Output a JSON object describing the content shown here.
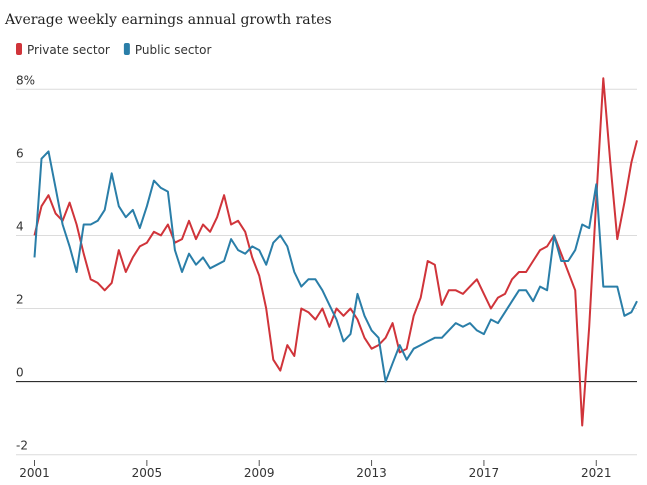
{
  "chart_data": {
    "type": "line",
    "title": "Average weekly earnings annual growth rates",
    "x": [
      2001,
      2001.25,
      2001.5,
      2001.75,
      2002,
      2002.25,
      2002.5,
      2002.75,
      2003,
      2003.25,
      2003.5,
      2003.75,
      2004,
      2004.25,
      2004.5,
      2004.75,
      2005,
      2005.25,
      2005.5,
      2005.75,
      2006,
      2006.25,
      2006.5,
      2006.75,
      2007,
      2007.25,
      2007.5,
      2007.75,
      2008,
      2008.25,
      2008.5,
      2008.75,
      2009,
      2009.25,
      2009.5,
      2009.75,
      2010,
      2010.25,
      2010.5,
      2010.75,
      2011,
      2011.25,
      2011.5,
      2011.75,
      2012,
      2012.25,
      2012.5,
      2012.75,
      2013,
      2013.25,
      2013.5,
      2013.75,
      2014,
      2014.25,
      2014.5,
      2014.75,
      2015,
      2015.25,
      2015.5,
      2015.75,
      2016,
      2016.25,
      2016.5,
      2016.75,
      2017,
      2017.25,
      2017.5,
      2017.75,
      2018,
      2018.25,
      2018.5,
      2018.75,
      2019,
      2019.25,
      2019.5,
      2019.75,
      2020,
      2020.25,
      2020.5,
      2020.75,
      2021,
      2021.25,
      2021.5,
      2021.75,
      2022,
      2022.25,
      2022.45
    ],
    "series": [
      {
        "name": "Private sector",
        "color": "#d0343a",
        "values": [
          4.0,
          4.8,
          5.1,
          4.6,
          4.4,
          4.9,
          4.3,
          3.5,
          2.8,
          2.7,
          2.5,
          2.7,
          3.6,
          3.0,
          3.4,
          3.7,
          3.8,
          4.1,
          4.0,
          4.3,
          3.8,
          3.9,
          4.4,
          3.9,
          4.3,
          4.1,
          4.5,
          5.1,
          4.3,
          4.4,
          4.1,
          3.4,
          2.9,
          2.0,
          0.6,
          0.3,
          1.0,
          0.7,
          2.0,
          1.9,
          1.7,
          2.0,
          1.5,
          2.0,
          1.8,
          2.0,
          1.7,
          1.2,
          0.9,
          1.0,
          1.2,
          1.6,
          0.8,
          0.9,
          1.8,
          2.3,
          3.3,
          3.2,
          2.1,
          2.5,
          2.5,
          2.4,
          2.6,
          2.8,
          2.4,
          2.0,
          2.3,
          2.4,
          2.8,
          3.0,
          3.0,
          3.3,
          3.6,
          3.7,
          4.0,
          3.5,
          3.0,
          2.5,
          -1.2,
          1.5,
          5.0,
          8.3,
          6.0,
          3.9,
          4.9,
          6.0,
          6.6
        ]
      },
      {
        "name": "Public sector",
        "color": "#2a7ea8",
        "values": [
          3.4,
          6.1,
          6.3,
          5.3,
          4.3,
          3.7,
          3.0,
          4.3,
          4.3,
          4.4,
          4.7,
          5.7,
          4.8,
          4.5,
          4.7,
          4.2,
          4.8,
          5.5,
          5.3,
          5.2,
          3.6,
          3.0,
          3.5,
          3.2,
          3.4,
          3.1,
          3.2,
          3.3,
          3.9,
          3.6,
          3.5,
          3.7,
          3.6,
          3.2,
          3.8,
          4.0,
          3.7,
          3.0,
          2.6,
          2.8,
          2.8,
          2.5,
          2.1,
          1.7,
          1.1,
          1.3,
          2.4,
          1.8,
          1.4,
          1.2,
          0.0,
          0.5,
          1.0,
          0.6,
          0.9,
          1.0,
          1.1,
          1.2,
          1.2,
          1.4,
          1.6,
          1.5,
          1.6,
          1.4,
          1.3,
          1.7,
          1.6,
          1.9,
          2.2,
          2.5,
          2.5,
          2.2,
          2.6,
          2.5,
          4.0,
          3.3,
          3.3,
          3.6,
          4.3,
          4.2,
          5.4,
          2.6,
          2.6,
          2.6,
          1.8,
          1.9,
          2.2
        ]
      }
    ],
    "xlim": [
      2001,
      2022.45
    ],
    "xticks": [
      2001,
      2005,
      2009,
      2013,
      2017,
      2021
    ],
    "ylim": [
      -2.2,
      8.5
    ],
    "yticks": [
      -2,
      0,
      2,
      4,
      {
        "value": 6,
        "label": "6"
      },
      {
        "value": 8,
        "label": "8%"
      }
    ],
    "grid": true
  }
}
